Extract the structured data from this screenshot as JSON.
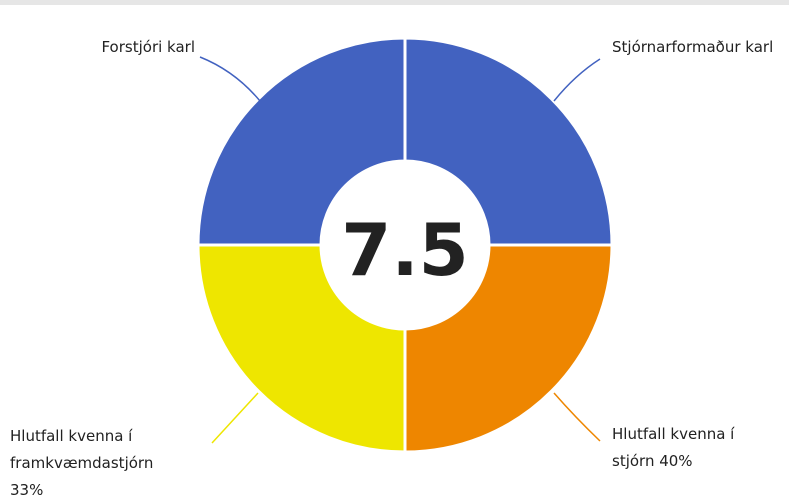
{
  "chart_data": {
    "type": "pie",
    "donut": true,
    "center_value": 7.5,
    "categories": [
      "Stjórnarformaður karl",
      "Hlutfall kvenna í stjórn 40%",
      "Hlutfall kvenna í framkvæmdastjórn 33%",
      "Forstjóri karl"
    ],
    "values": [
      25,
      25,
      25,
      25
    ],
    "colors": [
      "#4262c0",
      "#ee8600",
      "#eee600",
      "#4262c0"
    ]
  }
}
